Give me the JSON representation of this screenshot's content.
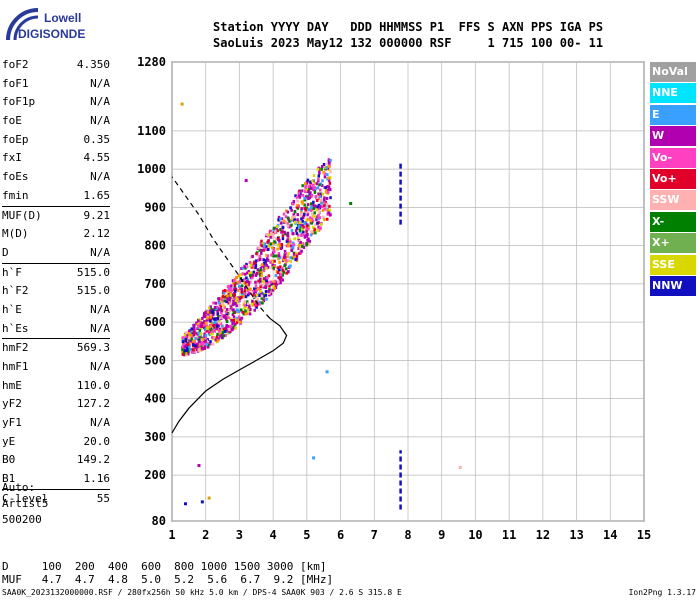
{
  "logo": {
    "line1": "Lowell",
    "line2": "DIGISONDE"
  },
  "header": {
    "line1": "Station YYYY DAY   DDD HHMMSS P1  FFS S AXN PPS IGA PS",
    "line2": "SaoLuis 2023 May12 132 000000 RSF     1 715 100 00- 11"
  },
  "params_groups": [
    [
      [
        "foF2",
        "4.350"
      ],
      [
        "foF1",
        "N/A"
      ],
      [
        "foF1p",
        "N/A"
      ],
      [
        "foE",
        "N/A"
      ],
      [
        "foEp",
        "0.35"
      ],
      [
        "fxI",
        "4.55"
      ],
      [
        "foEs",
        "N/A"
      ],
      [
        "fmin",
        "1.65"
      ]
    ],
    [
      [
        "MUF(D)",
        "9.21"
      ],
      [
        "M(D)",
        "2.12"
      ],
      [
        "D",
        "N/A"
      ]
    ],
    [
      [
        "h`F",
        "515.0"
      ],
      [
        "h`F2",
        "515.0"
      ],
      [
        "h`E",
        "N/A"
      ],
      [
        "h`Es",
        "N/A"
      ]
    ],
    [
      [
        "hmF2",
        "569.3"
      ],
      [
        "hmF1",
        "N/A"
      ],
      [
        "hmE",
        "110.0"
      ],
      [
        "yF2",
        "127.2"
      ],
      [
        "yF1",
        "N/A"
      ],
      [
        "yE",
        "20.0"
      ],
      [
        "B0",
        "149.2"
      ],
      [
        "B1",
        "1.16"
      ]
    ],
    [
      [
        "C-level",
        "55"
      ]
    ]
  ],
  "auto": {
    "line1": "Auto:",
    "line2": "Artist5",
    "line3": "500200"
  },
  "muf_table": {
    "d_row": "D     100  200  400  600  800 1000 1500 3000 [km]",
    "muf_row": "MUF   4.7  4.7  4.8  5.0  5.2  5.6  6.7  9.2 [MHz]"
  },
  "footer": {
    "left": "SAA0K_2023132000000.RSF / 280fx256h 50 kHz 5.0 km / DPS-4 SAA0K 903 / 2.6 S 315.8 E",
    "right": "Ion2Png 1.3.17"
  },
  "legend": [
    {
      "label": "NoVal",
      "color": "#a0a0a0"
    },
    {
      "label": "NNE",
      "color": "#00e5ff"
    },
    {
      "label": "E",
      "color": "#3aa0ff"
    },
    {
      "label": "W",
      "color": "#b000b0"
    },
    {
      "label": "Vo-",
      "color": "#ff40c0"
    },
    {
      "label": "Vo+",
      "color": "#e0002a"
    },
    {
      "label": "SSW",
      "color": "#ffb0b0"
    },
    {
      "label": "X-",
      "color": "#008000"
    },
    {
      "label": "X+",
      "color": "#70b050"
    },
    {
      "label": "SSE",
      "color": "#d8d800"
    },
    {
      "label": "NNW",
      "color": "#1010c0"
    }
  ],
  "chart_data": {
    "type": "scatter",
    "title": "",
    "xlabel": "",
    "ylabel": "",
    "xlim": [
      1,
      15
    ],
    "ylim": [
      80,
      1280
    ],
    "x_ticks": [
      1,
      2,
      3,
      4,
      5,
      6,
      7,
      8,
      9,
      10,
      11,
      12,
      13,
      14,
      15
    ],
    "y_ticks": [
      80,
      200,
      300,
      400,
      500,
      600,
      700,
      800,
      900,
      1000,
      1100,
      1280
    ],
    "grid": true,
    "trace_band": {
      "lower_edge": [
        [
          1.2,
          510
        ],
        [
          1.7,
          520
        ],
        [
          2.2,
          540
        ],
        [
          2.7,
          570
        ],
        [
          3.2,
          610
        ],
        [
          3.7,
          650
        ],
        [
          4.2,
          700
        ],
        [
          4.7,
          760
        ],
        [
          5.2,
          820
        ],
        [
          5.7,
          880
        ]
      ],
      "upper_edge": [
        [
          1.3,
          560
        ],
        [
          1.8,
          610
        ],
        [
          2.3,
          660
        ],
        [
          2.8,
          710
        ],
        [
          3.3,
          770
        ],
        [
          3.8,
          830
        ],
        [
          4.3,
          890
        ],
        [
          4.8,
          950
        ],
        [
          5.3,
          1000
        ],
        [
          5.8,
          1040
        ]
      ]
    },
    "profile_solid": [
      [
        1,
        310
      ],
      [
        1.2,
        340
      ],
      [
        1.5,
        375
      ],
      [
        2,
        420
      ],
      [
        2.5,
        450
      ],
      [
        3,
        475
      ],
      [
        3.5,
        500
      ],
      [
        4,
        525
      ],
      [
        4.3,
        545
      ],
      [
        4.4,
        565
      ],
      [
        4.2,
        590
      ],
      [
        3.9,
        610
      ]
    ],
    "profile_dashed": [
      [
        3.9,
        610
      ],
      [
        3.6,
        640
      ],
      [
        3.3,
        680
      ],
      [
        3.0,
        720
      ],
      [
        2.6,
        770
      ],
      [
        2.2,
        820
      ],
      [
        1.8,
        880
      ],
      [
        1.4,
        930
      ],
      [
        1,
        980
      ]
    ],
    "vertical_traces": [
      {
        "x": 7.78,
        "y_from": 855,
        "y_to": 1015,
        "color": "#1010c0"
      },
      {
        "x": 7.78,
        "y_from": 110,
        "y_to": 265,
        "color": "#1010c0"
      }
    ],
    "isolated_points": [
      {
        "x": 1.3,
        "y": 1170,
        "color": "#d8a000"
      },
      {
        "x": 1.8,
        "y": 225,
        "color": "#b000b0"
      },
      {
        "x": 1.9,
        "y": 130,
        "color": "#1010c0"
      },
      {
        "x": 1.4,
        "y": 125,
        "color": "#1010c0"
      },
      {
        "x": 2.1,
        "y": 140,
        "color": "#d8a000"
      },
      {
        "x": 5.2,
        "y": 245,
        "color": "#3aa0ff"
      },
      {
        "x": 5.6,
        "y": 470,
        "color": "#3aa0ff"
      },
      {
        "x": 6.3,
        "y": 910,
        "color": "#008000"
      },
      {
        "x": 9.55,
        "y": 220,
        "color": "#ffb0b0"
      },
      {
        "x": 3.2,
        "y": 970,
        "color": "#b000b0"
      }
    ]
  }
}
